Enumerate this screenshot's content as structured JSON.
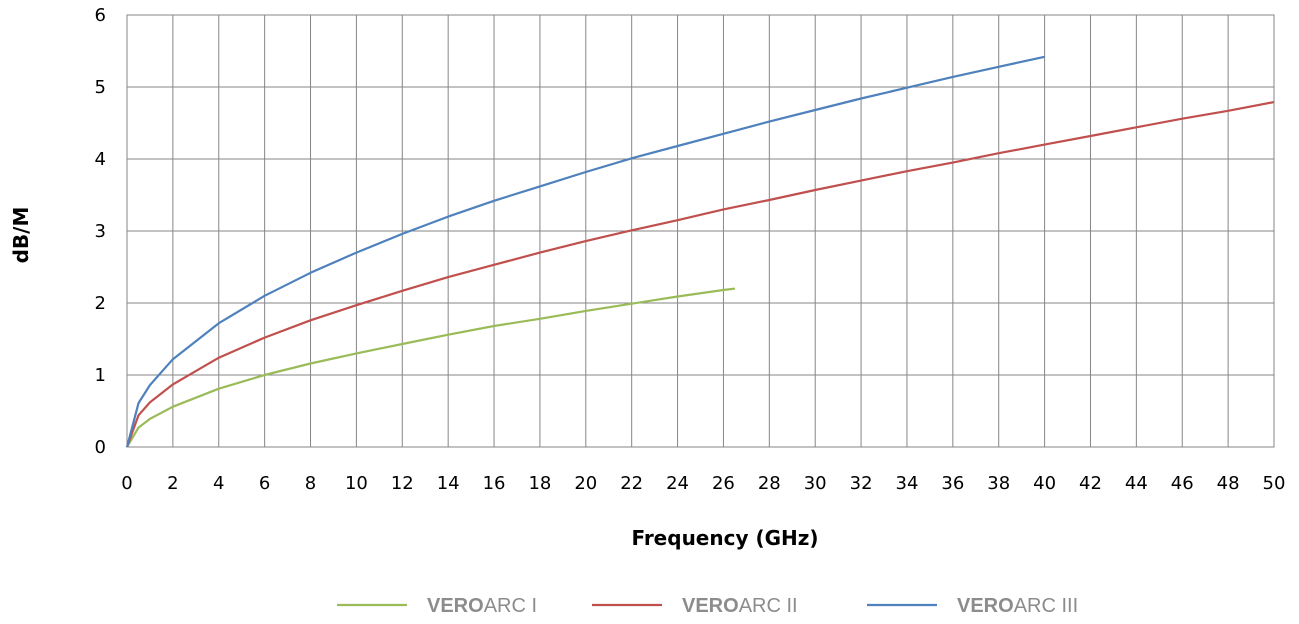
{
  "chart_data": {
    "type": "line",
    "title": "",
    "xlabel": "Frequency (GHz)",
    "ylabel": "dB/M",
    "xlim": [
      0,
      50
    ],
    "ylim": [
      0,
      6
    ],
    "x_ticks": [
      0,
      2,
      4,
      6,
      8,
      10,
      12,
      14,
      16,
      18,
      20,
      22,
      24,
      26,
      28,
      30,
      32,
      34,
      36,
      38,
      40,
      42,
      44,
      46,
      48,
      50
    ],
    "y_ticks": [
      0,
      1,
      2,
      3,
      4,
      5,
      6
    ],
    "grid": true,
    "legend_position": "bottom",
    "series": [
      {
        "name_bold": "VERO",
        "name_rest": "ARC I",
        "color": "#9bbb59",
        "x": [
          0,
          0.5,
          1,
          2,
          4,
          6,
          8,
          10,
          12,
          14,
          16,
          18,
          20,
          22,
          24,
          26,
          26.5
        ],
        "y": [
          0,
          0.27,
          0.39,
          0.56,
          0.81,
          1.0,
          1.16,
          1.3,
          1.43,
          1.56,
          1.68,
          1.78,
          1.89,
          1.99,
          2.09,
          2.18,
          2.2
        ]
      },
      {
        "name_bold": "VERO",
        "name_rest": "ARC II",
        "color": "#c0504d",
        "x": [
          0,
          0.5,
          1,
          2,
          4,
          6,
          8,
          10,
          12,
          14,
          16,
          18,
          20,
          22,
          24,
          26,
          28,
          30,
          32,
          34,
          36,
          38,
          40,
          42,
          44,
          46,
          48,
          50
        ],
        "y": [
          0,
          0.44,
          0.62,
          0.87,
          1.24,
          1.52,
          1.76,
          1.97,
          2.17,
          2.36,
          2.53,
          2.7,
          2.86,
          3.01,
          3.15,
          3.3,
          3.43,
          3.57,
          3.7,
          3.83,
          3.95,
          4.08,
          4.2,
          4.32,
          4.44,
          4.56,
          4.67,
          4.79
        ]
      },
      {
        "name_bold": "VERO",
        "name_rest": "ARC III",
        "color": "#4f81bd",
        "x": [
          0,
          0.5,
          1,
          2,
          4,
          6,
          8,
          10,
          12,
          14,
          16,
          18,
          20,
          22,
          24,
          26,
          28,
          30,
          32,
          34,
          36,
          38,
          40
        ],
        "y": [
          0,
          0.61,
          0.86,
          1.22,
          1.72,
          2.1,
          2.42,
          2.7,
          2.96,
          3.2,
          3.42,
          3.62,
          3.82,
          4.01,
          4.18,
          4.35,
          4.52,
          4.68,
          4.84,
          4.99,
          5.14,
          5.28,
          5.42
        ]
      }
    ]
  }
}
